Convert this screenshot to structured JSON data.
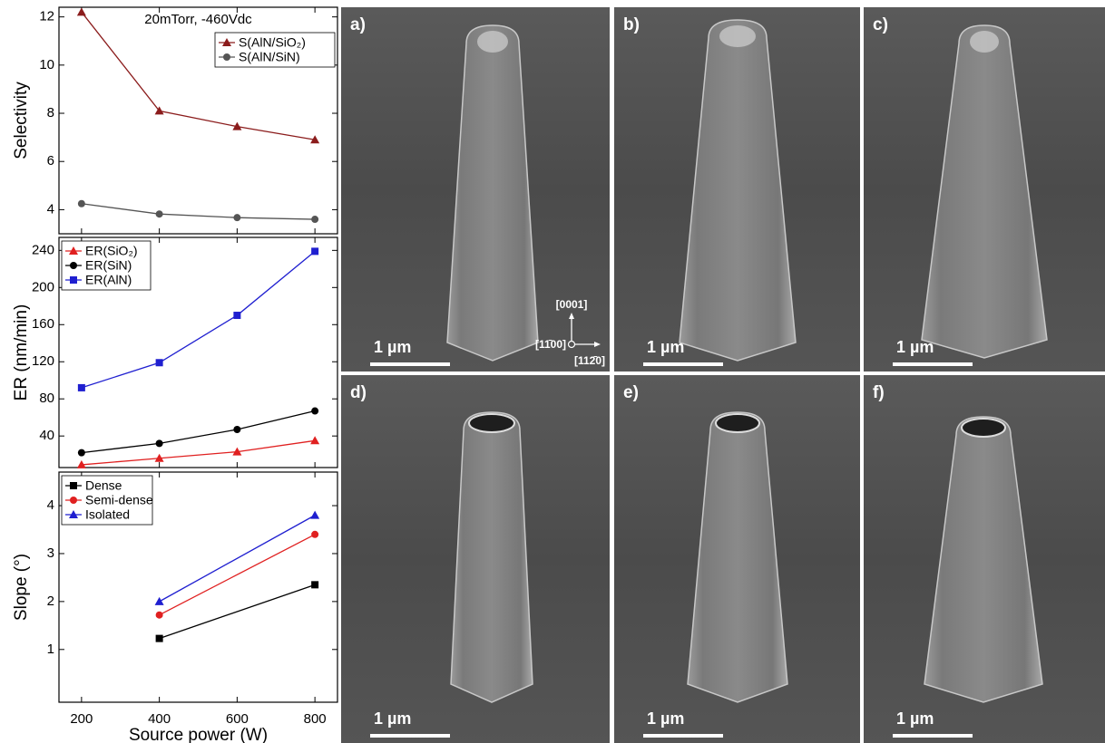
{
  "chart_data": [
    {
      "type": "line",
      "annotation": "20mTorr, -460Vdc",
      "ylabel": "Selectivity",
      "xlim": [
        142,
        858
      ],
      "xticks": [
        200,
        400,
        600,
        800
      ],
      "ylim": [
        3,
        12.4
      ],
      "yticks": [
        4,
        6,
        8,
        10,
        12
      ],
      "legend": "upper right",
      "series": [
        {
          "name": "S(AlN/SiO₂)",
          "color": "#8b1c1c",
          "marker": "triangle",
          "x": [
            200,
            400,
            600,
            800
          ],
          "values": [
            12.2,
            8.1,
            7.45,
            6.9
          ]
        },
        {
          "name": "S(AlN/SiN)",
          "color": "#555555",
          "marker": "circle",
          "x": [
            200,
            400,
            600,
            800
          ],
          "values": [
            4.25,
            3.82,
            3.67,
            3.6
          ]
        }
      ]
    },
    {
      "type": "line",
      "ylabel": "ER (nm/min)",
      "xlim": [
        142,
        858
      ],
      "xticks": [
        200,
        400,
        600,
        800
      ],
      "ylim": [
        6,
        254
      ],
      "yticks": [
        40,
        80,
        120,
        160,
        200,
        240
      ],
      "legend": "upper left",
      "series": [
        {
          "name": "ER(SiO₂)",
          "color": "#e02020",
          "marker": "triangle",
          "x": [
            200,
            400,
            600,
            800
          ],
          "values": [
            9,
            16,
            23,
            35
          ]
        },
        {
          "name": "ER(SiN)",
          "color": "#000000",
          "marker": "circle",
          "x": [
            200,
            400,
            600,
            800
          ],
          "values": [
            22,
            32,
            47,
            67
          ]
        },
        {
          "name": "ER(AlN)",
          "color": "#1f1fd0",
          "marker": "square",
          "x": [
            200,
            400,
            600,
            800
          ],
          "values": [
            92,
            119,
            170,
            239
          ]
        }
      ]
    },
    {
      "type": "line",
      "ylabel": "Slope (°)",
      "xlabel": "Source power (W)",
      "xlim": [
        142,
        858
      ],
      "xticks": [
        200,
        400,
        600,
        800
      ],
      "ylim": [
        -0.1,
        4.7
      ],
      "yticks": [
        1,
        2,
        3,
        4
      ],
      "legend": "upper left",
      "series": [
        {
          "name": "Dense",
          "color": "#000000",
          "marker": "square",
          "x": [
            400,
            800
          ],
          "values": [
            1.23,
            2.35
          ]
        },
        {
          "name": "Semi-dense",
          "color": "#e02020",
          "marker": "circle",
          "x": [
            400,
            800
          ],
          "values": [
            1.72,
            3.4
          ]
        },
        {
          "name": "Isolated",
          "color": "#1f1fd0",
          "marker": "triangle",
          "x": [
            400,
            800
          ],
          "values": [
            2.0,
            3.8
          ]
        }
      ]
    }
  ],
  "figure": {
    "panels": [
      {
        "label": "a)",
        "scale_bar": "1 µm"
      },
      {
        "label": "b)",
        "scale_bar": "1 µm"
      },
      {
        "label": "c)",
        "scale_bar": "1 µm"
      },
      {
        "label": "d)",
        "scale_bar": "1 µm"
      },
      {
        "label": "e)",
        "scale_bar": "1 µm"
      },
      {
        "label": "f)",
        "scale_bar": "1 µm"
      }
    ],
    "axes_indicator": {
      "up": "[0001]",
      "left": "[11̄00]",
      "right": "[112̄0]"
    }
  }
}
